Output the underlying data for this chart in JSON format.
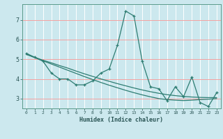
{
  "xlabel": "Humidex (Indice chaleur)",
  "background_color": "#cce8ee",
  "grid_color_v": "#ffffff",
  "grid_color_h": "#f5a0a0",
  "line_color": "#2e7d72",
  "xlim": [
    -0.5,
    23.5
  ],
  "ylim": [
    2.5,
    7.8
  ],
  "xticks": [
    0,
    1,
    2,
    3,
    4,
    5,
    6,
    7,
    8,
    9,
    10,
    11,
    12,
    13,
    14,
    15,
    16,
    17,
    18,
    19,
    20,
    21,
    22,
    23
  ],
  "yticks": [
    3,
    4,
    5,
    6,
    7
  ],
  "line1_x": [
    0,
    1,
    2,
    3,
    4,
    5,
    6,
    7,
    8,
    9,
    10,
    11,
    12,
    13,
    14,
    15,
    16,
    17,
    18,
    19,
    20,
    21,
    22,
    23
  ],
  "line1_y": [
    5.3,
    5.1,
    4.9,
    4.3,
    4.0,
    4.0,
    3.7,
    3.7,
    3.9,
    4.3,
    4.5,
    5.7,
    7.45,
    7.2,
    4.9,
    3.6,
    3.5,
    2.9,
    3.6,
    3.1,
    4.1,
    2.8,
    2.6,
    3.3
  ],
  "line2_x": [
    0,
    1,
    2,
    3,
    4,
    5,
    6,
    7,
    8,
    9,
    10,
    11,
    12,
    13,
    14,
    15,
    16,
    17,
    18,
    19,
    20,
    21,
    22,
    23
  ],
  "line2_y": [
    5.25,
    5.08,
    4.92,
    4.76,
    4.6,
    4.44,
    4.28,
    4.12,
    3.97,
    3.82,
    3.68,
    3.55,
    3.42,
    3.3,
    3.19,
    3.09,
    3.0,
    2.95,
    2.92,
    2.9,
    2.92,
    2.95,
    2.97,
    3.0
  ],
  "line3_x": [
    0,
    1,
    2,
    3,
    4,
    5,
    6,
    7,
    8,
    9,
    10,
    11,
    12,
    13,
    14,
    15,
    16,
    17,
    18,
    19,
    20,
    21,
    22,
    23
  ],
  "line3_y": [
    5.25,
    5.1,
    4.95,
    4.82,
    4.68,
    4.55,
    4.4,
    4.26,
    4.13,
    4.0,
    3.88,
    3.76,
    3.65,
    3.54,
    3.44,
    3.35,
    3.27,
    3.2,
    3.15,
    3.11,
    3.08,
    3.06,
    3.05,
    3.05
  ]
}
